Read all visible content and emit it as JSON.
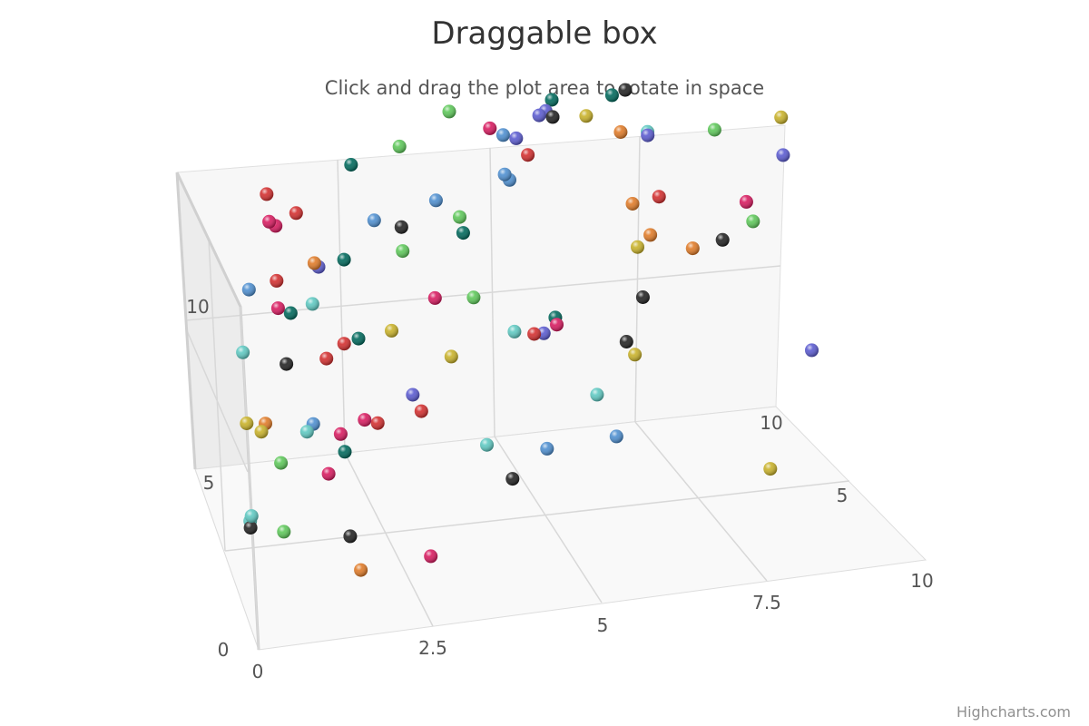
{
  "chart_data": {
    "type": "scatter",
    "title": "Draggable box",
    "subtitle": "Click and drag the plot area to rotate in space",
    "credits": "Highcharts.com",
    "xlim": [
      0,
      10
    ],
    "ylim": [
      0,
      10
    ],
    "zlim": [
      0,
      10
    ],
    "x_ticks": [
      "0",
      "2.5",
      "5",
      "7.5",
      "10"
    ],
    "y_ticks": [
      "0",
      "5",
      "10"
    ],
    "z_ticks": [
      "5",
      "10"
    ],
    "grid": true,
    "legend": "none",
    "colors": [
      "#7cb5ec",
      "#434348",
      "#90ed7d",
      "#f7a35c",
      "#8085e9",
      "#f15c80",
      "#e4d354",
      "#2b908f",
      "#f45b5b",
      "#91e8e1"
    ],
    "points": [
      {
        "x": 1.0,
        "y": 9.6,
        "z": 6.5,
        "c": "#d32f2f"
      },
      {
        "x": 1.4,
        "y": 9.1,
        "z": 6.2,
        "c": "#d32f2f"
      },
      {
        "x": 1.0,
        "y": 8.9,
        "z": 6.3,
        "c": "#d81b60"
      },
      {
        "x": 1.1,
        "y": 8.7,
        "z": 6.4,
        "c": "#d81b60"
      },
      {
        "x": 2.4,
        "y": 9.3,
        "z": 8.0,
        "c": "#00695c"
      },
      {
        "x": 3.2,
        "y": 9.2,
        "z": 8.8,
        "c": "#5ec85a"
      },
      {
        "x": 4.0,
        "y": 9.8,
        "z": 9.2,
        "c": "#5ec85a"
      },
      {
        "x": 4.6,
        "y": 9.1,
        "z": 9.3,
        "c": "#d81b60"
      },
      {
        "x": 4.8,
        "y": 8.8,
        "z": 9.4,
        "c": "#4e8fd0"
      },
      {
        "x": 5.0,
        "y": 8.6,
        "z": 9.5,
        "c": "#5b5bd0"
      },
      {
        "x": 5.6,
        "y": 9.3,
        "z": 10.0,
        "c": "#00695c"
      },
      {
        "x": 5.5,
        "y": 9.0,
        "z": 10.0,
        "c": "#5b5bd0"
      },
      {
        "x": 5.4,
        "y": 8.9,
        "z": 10.0,
        "c": "#5b5bd0"
      },
      {
        "x": 5.6,
        "y": 8.8,
        "z": 10.0,
        "c": "#222222"
      },
      {
        "x": 6.1,
        "y": 8.7,
        "z": 10.0,
        "c": "#c9b22a"
      },
      {
        "x": 6.5,
        "y": 9.2,
        "z": 10.0,
        "c": "#00695c"
      },
      {
        "x": 6.7,
        "y": 9.3,
        "z": 10.0,
        "c": "#222222"
      },
      {
        "x": 6.6,
        "y": 8.1,
        "z": 10.0,
        "c": "#e07b28"
      },
      {
        "x": 7.0,
        "y": 8.0,
        "z": 10.0,
        "c": "#5fc9c2"
      },
      {
        "x": 7.0,
        "y": 7.9,
        "z": 10.0,
        "c": "#5b5bd0"
      },
      {
        "x": 8.0,
        "y": 7.8,
        "z": 10.0,
        "c": "#5ec85a"
      },
      {
        "x": 9.0,
        "y": 7.9,
        "z": 10.0,
        "c": "#c9b22a"
      },
      {
        "x": 0.5,
        "y": 8.0,
        "z": 4.5,
        "c": "#4e8fd0"
      },
      {
        "x": 0.2,
        "y": 7.3,
        "z": 2.5,
        "c": "#5fc9c2"
      },
      {
        "x": 1.0,
        "y": 7.6,
        "z": 5.5,
        "c": "#d32f2f"
      },
      {
        "x": 1.6,
        "y": 7.8,
        "z": 5.8,
        "c": "#e07b28"
      },
      {
        "x": 1.7,
        "y": 7.4,
        "z": 6.3,
        "c": "#5b5bd0"
      },
      {
        "x": 2.1,
        "y": 7.4,
        "z": 6.5,
        "c": "#00695c"
      },
      {
        "x": 2.7,
        "y": 7.6,
        "z": 8.0,
        "c": "#4e8fd0"
      },
      {
        "x": 3.1,
        "y": 7.3,
        "z": 8.0,
        "c": "#222222"
      },
      {
        "x": 3.7,
        "y": 7.5,
        "z": 8.8,
        "c": "#4e8fd0"
      },
      {
        "x": 4.0,
        "y": 7.2,
        "z": 8.3,
        "c": "#5ec85a"
      },
      {
        "x": 4.0,
        "y": 7.0,
        "z": 7.8,
        "c": "#00695c"
      },
      {
        "x": 4.8,
        "y": 7.6,
        "z": 9.5,
        "c": "#4e8fd0"
      },
      {
        "x": 5.2,
        "y": 7.8,
        "z": 10.0,
        "c": "#d32f2f"
      },
      {
        "x": 4.9,
        "y": 7.2,
        "z": 9.9,
        "c": "#4e8fd0"
      },
      {
        "x": 1.0,
        "y": 6.8,
        "z": 5.5,
        "c": "#d81b60"
      },
      {
        "x": 1.2,
        "y": 6.5,
        "z": 5.7,
        "c": "#00695c"
      },
      {
        "x": 1.5,
        "y": 6.9,
        "z": 5.3,
        "c": "#5fc9c2"
      },
      {
        "x": 3.1,
        "y": 6.6,
        "z": 8.0,
        "c": "#5ec85a"
      },
      {
        "x": 0.0,
        "y": 6.6,
        "z": 0.0,
        "c": "#c9b22a"
      },
      {
        "x": 0.3,
        "y": 5.7,
        "z": 1.1,
        "c": "#c9b22a"
      },
      {
        "x": 0.4,
        "y": 5.7,
        "z": 1.5,
        "c": "#e07b28"
      },
      {
        "x": 1.0,
        "y": 5.7,
        "z": 4.5,
        "c": "#222222"
      },
      {
        "x": 1.6,
        "y": 5.7,
        "z": 4.5,
        "c": "#d32f2f"
      },
      {
        "x": 1.9,
        "y": 5.9,
        "z": 4.8,
        "c": "#d32f2f"
      },
      {
        "x": 2.1,
        "y": 6.1,
        "z": 4.6,
        "c": "#00695c"
      },
      {
        "x": 2.6,
        "y": 6.2,
        "z": 4.6,
        "c": "#c9b22a"
      },
      {
        "x": 3.4,
        "y": 6.1,
        "z": 6.2,
        "c": "#d81b60"
      },
      {
        "x": 4.0,
        "y": 5.8,
        "z": 6.5,
        "c": "#5ec85a"
      },
      {
        "x": 6.6,
        "y": 6.8,
        "z": 8.5,
        "c": "#e07b28"
      },
      {
        "x": 7.0,
        "y": 6.9,
        "z": 8.5,
        "c": "#d32f2f"
      },
      {
        "x": 6.8,
        "y": 6.1,
        "z": 8.0,
        "c": "#e07b28"
      },
      {
        "x": 6.6,
        "y": 5.8,
        "z": 8.0,
        "c": "#c9b22a"
      },
      {
        "x": 1.2,
        "y": 4.9,
        "z": 2.6,
        "c": "#4e8fd0"
      },
      {
        "x": 1.1,
        "y": 4.7,
        "z": 2.6,
        "c": "#5fc9c2"
      },
      {
        "x": 0.6,
        "y": 4.5,
        "z": 1.5,
        "c": "#5ec85a"
      },
      {
        "x": 1.6,
        "y": 4.5,
        "z": 2.6,
        "c": "#d81b60"
      },
      {
        "x": 1.6,
        "y": 4.3,
        "z": 2.0,
        "c": "#00695c"
      },
      {
        "x": 2.0,
        "y": 4.6,
        "z": 3.0,
        "c": "#d81b60"
      },
      {
        "x": 2.2,
        "y": 4.4,
        "z": 3.1,
        "c": "#d32f2f"
      },
      {
        "x": 2.8,
        "y": 4.7,
        "z": 3.8,
        "c": "#5b5bd0"
      },
      {
        "x": 2.9,
        "y": 4.3,
        "z": 3.6,
        "c": "#d32f2f"
      },
      {
        "x": 1.3,
        "y": 4.0,
        "z": 1.5,
        "c": "#d81b60"
      },
      {
        "x": 3.5,
        "y": 5.0,
        "z": 5.0,
        "c": "#c9b22a"
      },
      {
        "x": 4.5,
        "y": 5.2,
        "z": 5.5,
        "c": "#5fc9c2"
      },
      {
        "x": 4.8,
        "y": 5.0,
        "z": 5.6,
        "c": "#d32f2f"
      },
      {
        "x": 5.2,
        "y": 4.9,
        "z": 6.5,
        "c": "#00695c"
      },
      {
        "x": 5.2,
        "y": 4.8,
        "z": 6.3,
        "c": "#d81b60"
      },
      {
        "x": 5.0,
        "y": 4.6,
        "z": 6.3,
        "c": "#5b5bd0"
      },
      {
        "x": 6.6,
        "y": 4.6,
        "z": 7.5,
        "c": "#222222"
      },
      {
        "x": 8.4,
        "y": 5.7,
        "z": 9.8,
        "c": "#d81b60"
      },
      {
        "x": 7.5,
        "y": 5.0,
        "z": 9.0,
        "c": "#e07b28"
      },
      {
        "x": 8.5,
        "y": 5.0,
        "z": 10.0,
        "c": "#5ec85a"
      },
      {
        "x": 8.0,
        "y": 4.8,
        "z": 9.6,
        "c": "#222222"
      },
      {
        "x": 9.0,
        "y": 6.8,
        "z": 10.0,
        "c": "#5b5bd0"
      },
      {
        "x": 0.0,
        "y": 3.9,
        "z": 0.0,
        "c": "#5fc9c2"
      },
      {
        "x": 0.0,
        "y": 3.6,
        "z": 0.3,
        "c": "#5fc9c2"
      },
      {
        "x": 0.0,
        "y": 3.4,
        "z": 0.3,
        "c": "#222222"
      },
      {
        "x": 0.5,
        "y": 3.1,
        "z": 0.4,
        "c": "#5ec85a"
      },
      {
        "x": 1.5,
        "y": 2.6,
        "z": 0.6,
        "c": "#222222"
      },
      {
        "x": 1.6,
        "y": 1.8,
        "z": 0.2,
        "c": "#e07b28"
      },
      {
        "x": 2.7,
        "y": 1.6,
        "z": 0.8,
        "c": "#d81b60"
      },
      {
        "x": 3.8,
        "y": 3.4,
        "z": 3.0,
        "c": "#5fc9c2"
      },
      {
        "x": 4.1,
        "y": 2.7,
        "z": 2.3,
        "c": "#222222"
      },
      {
        "x": 4.7,
        "y": 3.0,
        "z": 3.1,
        "c": "#4e8fd0"
      },
      {
        "x": 5.6,
        "y": 3.6,
        "z": 4.5,
        "c": "#5fc9c2"
      },
      {
        "x": 6.3,
        "y": 3.9,
        "z": 5.8,
        "c": "#c9b22a"
      },
      {
        "x": 6.2,
        "y": 4.2,
        "z": 6.0,
        "c": "#222222"
      },
      {
        "x": 5.8,
        "y": 2.7,
        "z": 3.8,
        "c": "#4e8fd0"
      },
      {
        "x": 8.0,
        "y": 1.6,
        "z": 3.0,
        "c": "#c9b22a"
      },
      {
        "x": 9.0,
        "y": 2.9,
        "z": 6.6,
        "c": "#5b5bd0"
      }
    ]
  }
}
